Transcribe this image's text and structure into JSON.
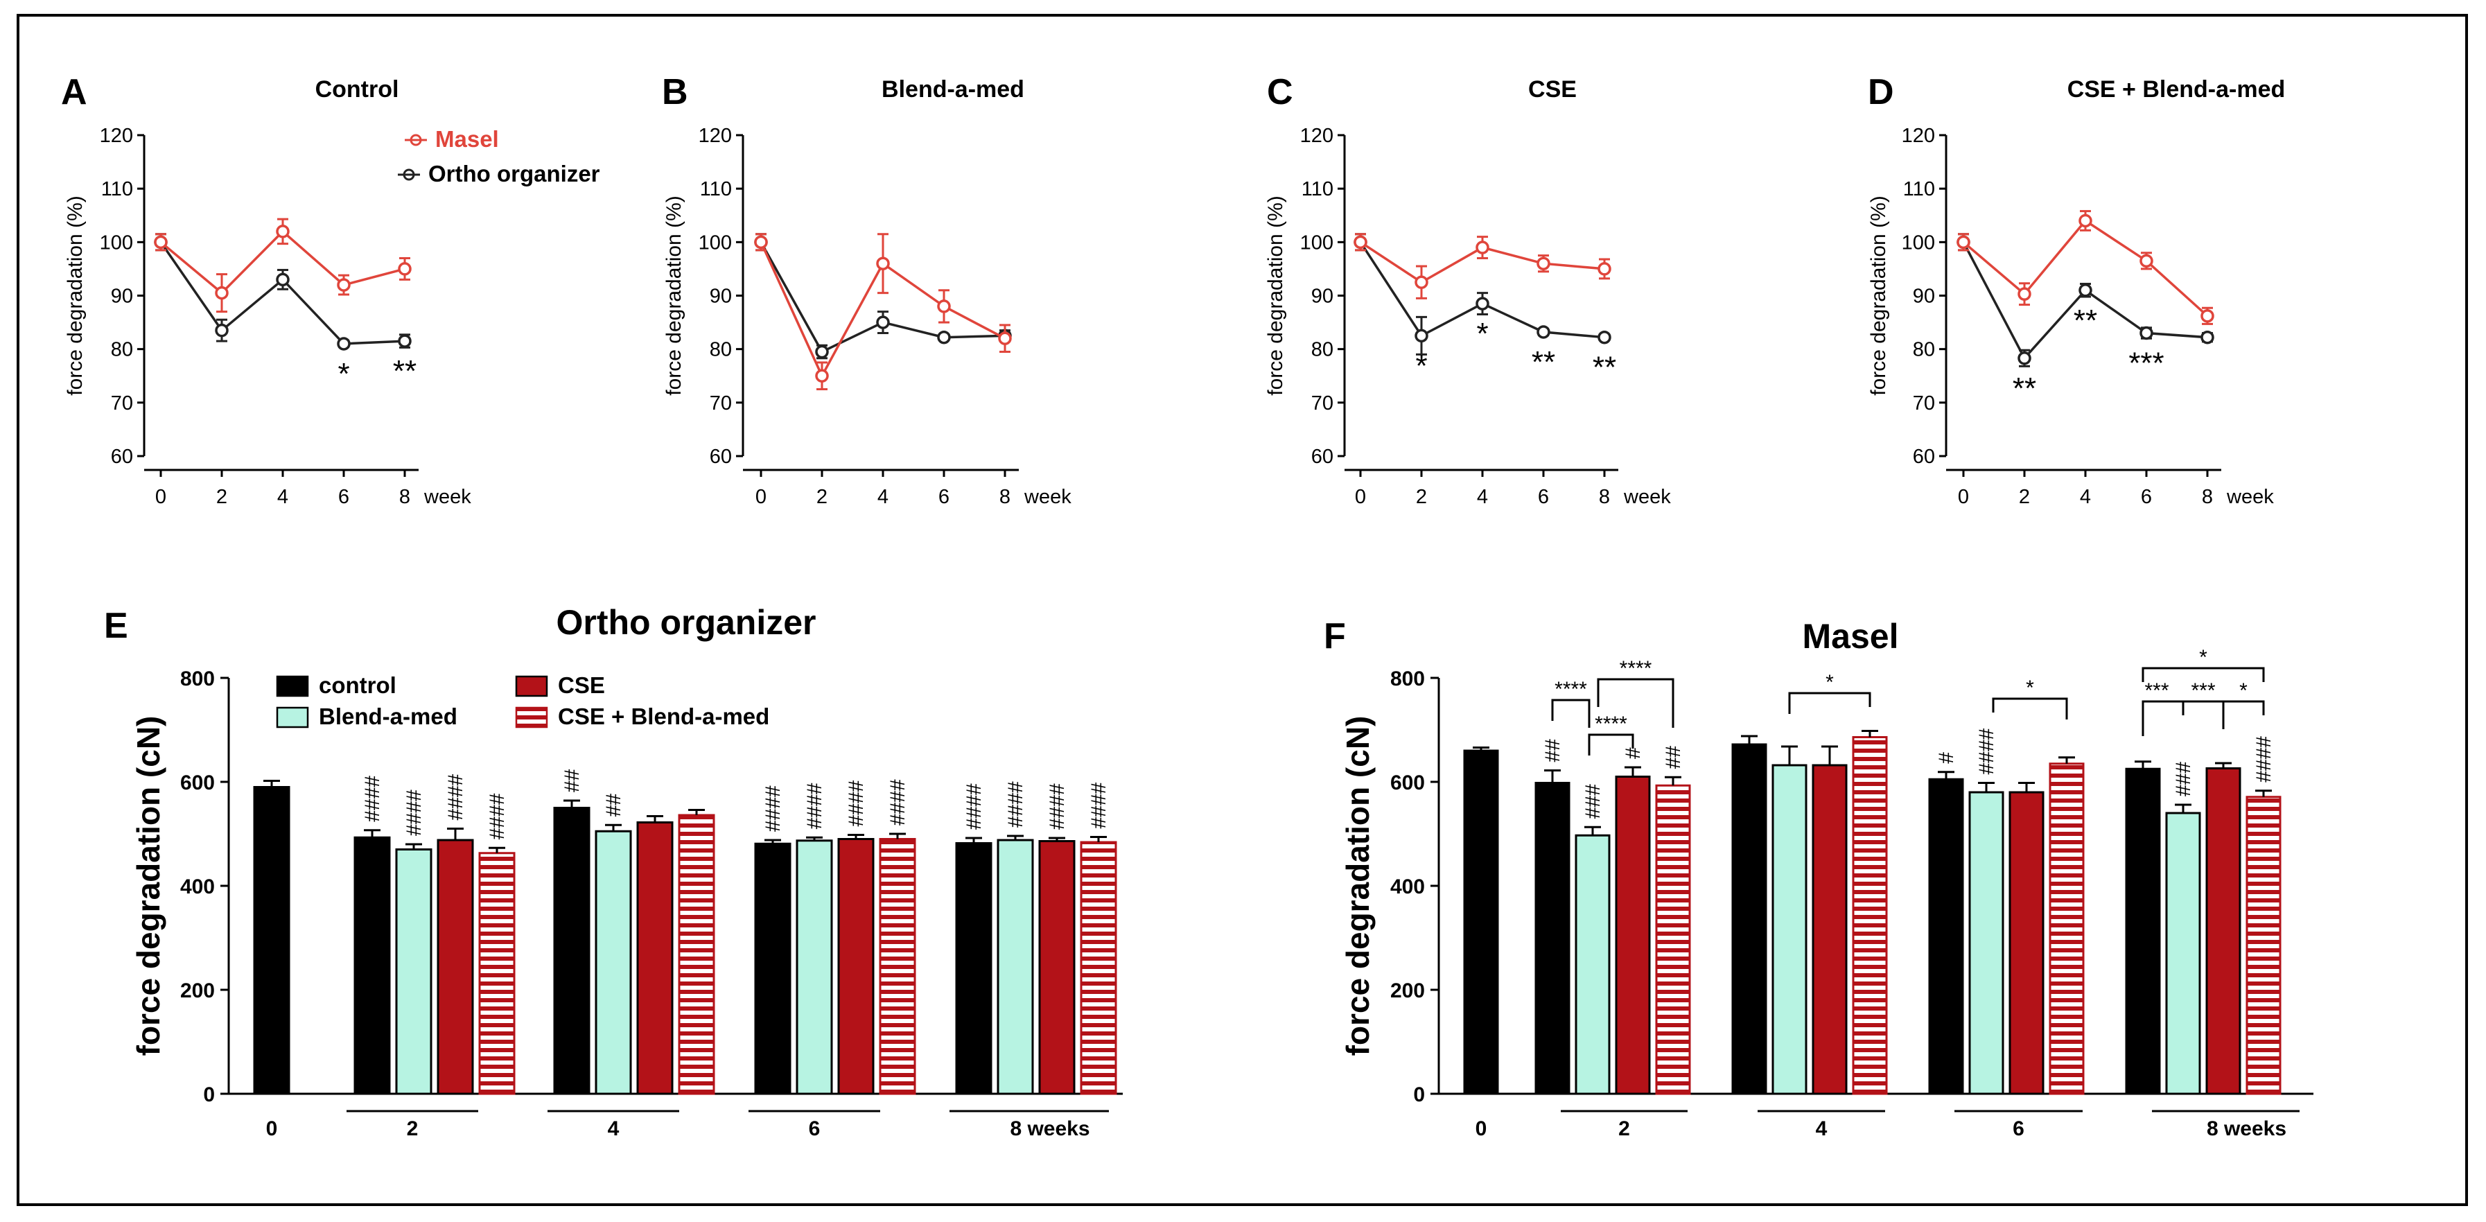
{
  "colors": {
    "masel": "#e0453b",
    "ortho": "#222222",
    "control": "#000000",
    "blend": "#b7f3e2",
    "cse": "#b31218",
    "cseblend": "#b31218"
  },
  "chart_data": [
    {
      "type": "line",
      "panel": "A",
      "title": "Control",
      "xlabel": "week",
      "ylabel": "force degradation (%)",
      "x": [
        0,
        2,
        4,
        6,
        8
      ],
      "ylim": [
        60,
        120
      ],
      "yticks": [
        60,
        70,
        80,
        90,
        100,
        110,
        120
      ],
      "series": [
        {
          "name": "Masel",
          "values": [
            100,
            90.5,
            102,
            92,
            95
          ],
          "errors": [
            1.5,
            3.5,
            2.3,
            1.8,
            2.0
          ]
        },
        {
          "name": "Ortho organizer",
          "values": [
            100,
            83.5,
            93,
            81,
            81.5
          ],
          "errors": [
            1.5,
            2.0,
            1.8,
            0.6,
            1.2
          ]
        }
      ],
      "legend": [
        "Masel",
        "Ortho organizer"
      ],
      "annotations": [
        {
          "x": 6,
          "text": "*"
        },
        {
          "x": 8,
          "text": "**"
        }
      ]
    },
    {
      "type": "line",
      "panel": "B",
      "title": "Blend-a-med",
      "xlabel": "week",
      "ylabel": "force degradation (%)",
      "x": [
        0,
        2,
        4,
        6,
        8
      ],
      "ylim": [
        60,
        120
      ],
      "yticks": [
        60,
        70,
        80,
        90,
        100,
        110,
        120
      ],
      "series": [
        {
          "name": "Masel",
          "values": [
            100,
            75,
            96,
            88,
            82
          ],
          "errors": [
            1.5,
            2.5,
            5.5,
            3.0,
            2.5
          ]
        },
        {
          "name": "Ortho organizer",
          "values": [
            100,
            79.5,
            85,
            82.2,
            82.5
          ],
          "errors": [
            1.5,
            1.2,
            2.0,
            0.5,
            1.0
          ]
        }
      ],
      "annotations": []
    },
    {
      "type": "line",
      "panel": "C",
      "title": "CSE",
      "xlabel": "week",
      "ylabel": "force degradation (%)",
      "x": [
        0,
        2,
        4,
        6,
        8
      ],
      "ylim": [
        60,
        120
      ],
      "yticks": [
        60,
        70,
        80,
        90,
        100,
        110,
        120
      ],
      "series": [
        {
          "name": "Masel",
          "values": [
            100,
            92.5,
            99,
            96,
            95
          ],
          "errors": [
            1.5,
            3.0,
            2.0,
            1.5,
            1.8
          ]
        },
        {
          "name": "Ortho organizer",
          "values": [
            100,
            82.5,
            88.5,
            83.2,
            82.2
          ],
          "errors": [
            1.5,
            3.5,
            2.0,
            0.6,
            0.5
          ]
        }
      ],
      "annotations": [
        {
          "x": 2,
          "text": "*"
        },
        {
          "x": 4,
          "text": "*"
        },
        {
          "x": 6,
          "text": "**"
        },
        {
          "x": 8,
          "text": "**"
        }
      ]
    },
    {
      "type": "line",
      "panel": "D",
      "title": "CSE + Blend-a-med",
      "xlabel": "week",
      "ylabel": "force degradation (%)",
      "x": [
        0,
        2,
        4,
        6,
        8
      ],
      "ylim": [
        60,
        120
      ],
      "yticks": [
        60,
        70,
        80,
        90,
        100,
        110,
        120
      ],
      "series": [
        {
          "name": "Masel",
          "values": [
            100,
            90.3,
            104,
            96.5,
            86.2
          ],
          "errors": [
            1.5,
            2.0,
            1.8,
            1.5,
            1.5
          ]
        },
        {
          "name": "Ortho organizer",
          "values": [
            100,
            78.3,
            91,
            83,
            82.2
          ],
          "errors": [
            1.5,
            1.5,
            1.2,
            1.0,
            0.8
          ]
        }
      ],
      "annotations": [
        {
          "x": 2,
          "text": "**"
        },
        {
          "x": 4,
          "text": "**"
        },
        {
          "x": 6,
          "text": "***"
        }
      ]
    },
    {
      "type": "bar",
      "panel": "E",
      "title": "Ortho organizer",
      "ylabel": "force degradation (cN)",
      "ylim": [
        0,
        800
      ],
      "yticks": [
        0,
        200,
        400,
        600,
        800
      ],
      "legend": [
        "control",
        "Blend-a-med",
        "CSE",
        "CSE + Blend-a-med"
      ],
      "baseline": {
        "label": "0",
        "value": 590,
        "error": 12
      },
      "groups": [
        {
          "label": "2",
          "values": [
            493,
            470,
            488,
            463
          ],
          "errors": [
            14,
            10,
            22,
            10
          ],
          "marks": [
            "####",
            "####",
            "####",
            "####"
          ]
        },
        {
          "label": "4",
          "values": [
            550,
            505,
            522,
            536
          ],
          "errors": [
            14,
            12,
            12,
            10
          ],
          "marks": [
            "##",
            "##",
            "",
            ""
          ]
        },
        {
          "label": "6",
          "values": [
            481,
            487,
            490,
            490
          ],
          "errors": [
            7,
            6,
            8,
            10
          ],
          "marks": [
            "####",
            "####",
            "####",
            "####"
          ]
        },
        {
          "label": "8 weeks",
          "values": [
            482,
            488,
            486,
            484
          ],
          "errors": [
            10,
            8,
            6,
            10
          ],
          "marks": [
            "####",
            "####",
            "####",
            "####"
          ]
        }
      ]
    },
    {
      "type": "bar",
      "panel": "F",
      "title": "Masel",
      "ylabel": "force degradation (cN)",
      "ylim": [
        0,
        800
      ],
      "yticks": [
        0,
        200,
        400,
        600,
        800
      ],
      "baseline": {
        "label": "0",
        "value": 660,
        "error": 6
      },
      "groups": [
        {
          "label": "2",
          "values": [
            598,
            497,
            610,
            593
          ],
          "errors": [
            24,
            16,
            18,
            16
          ],
          "marks": [
            "##",
            "###",
            "#",
            "##"
          ]
        },
        {
          "label": "4",
          "values": [
            672,
            632,
            632,
            686
          ],
          "errors": [
            16,
            36,
            36,
            12
          ],
          "marks": [
            "",
            "",
            "",
            ""
          ]
        },
        {
          "label": "6",
          "values": [
            605,
            580,
            580,
            635
          ],
          "errors": [
            14,
            18,
            18,
            12
          ],
          "marks": [
            "#",
            "####",
            "",
            ""
          ]
        },
        {
          "label": "8 weeks",
          "values": [
            625,
            540,
            626,
            571
          ],
          "errors": [
            14,
            16,
            10,
            12
          ],
          "marks": [
            "",
            "###",
            "",
            "####"
          ]
        }
      ],
      "comparisons": [
        {
          "text": "****",
          "group": 0
        },
        {
          "text": "****",
          "group": 0
        },
        {
          "text": "****",
          "group": 0
        },
        {
          "text": "*",
          "group": 1
        },
        {
          "text": "*",
          "group": 2
        },
        {
          "text": "*",
          "group": 3
        },
        {
          "text": "***",
          "group": 3
        },
        {
          "text": "***",
          "group": 3
        },
        {
          "text": "*",
          "group": 3
        }
      ]
    }
  ]
}
